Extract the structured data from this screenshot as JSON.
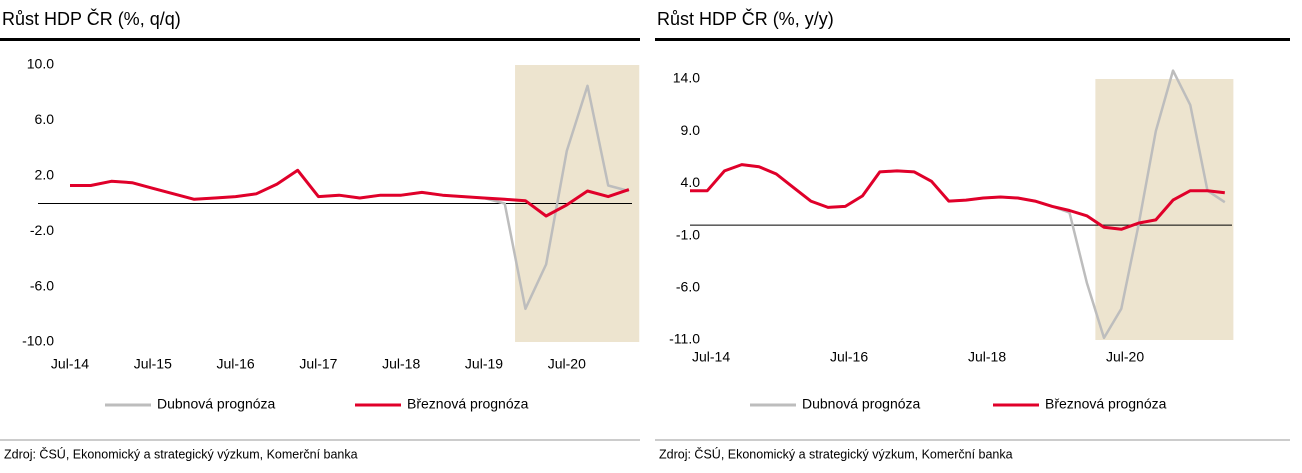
{
  "chart_data": [
    {
      "type": "line",
      "title": "Růst HDP ČR (%, q/q)",
      "categories": [
        "Jul-14",
        null,
        null,
        null,
        "Jul-15",
        null,
        null,
        null,
        "Jul-16",
        null,
        null,
        null,
        "Jul-17",
        null,
        null,
        null,
        "Jul-18",
        null,
        null,
        null,
        "Jul-19",
        null,
        null,
        null,
        "Jul-20",
        null,
        null,
        null
      ],
      "series": [
        {
          "name": "Dubnová prognóza",
          "color": "#bdbdbd",
          "values": [
            1.3,
            1.3,
            1.6,
            1.5,
            1.1,
            0.7,
            0.3,
            0.4,
            0.5,
            0.7,
            1.4,
            2.4,
            0.5,
            0.6,
            0.4,
            0.6,
            0.6,
            0.8,
            0.6,
            0.5,
            0.4,
            0.0,
            -7.6,
            -4.4,
            3.8,
            8.5,
            1.3,
            0.9
          ]
        },
        {
          "name": "Březnová prognóza",
          "color": "#e0002a",
          "values": [
            1.3,
            1.3,
            1.6,
            1.5,
            1.1,
            0.7,
            0.3,
            0.4,
            0.5,
            0.7,
            1.4,
            2.4,
            0.5,
            0.6,
            0.4,
            0.6,
            0.6,
            0.8,
            0.6,
            0.5,
            0.4,
            0.3,
            0.2,
            -0.9,
            -0.1,
            0.9,
            0.5,
            1.0
          ]
        }
      ],
      "ylim": [
        -10,
        10
      ],
      "yticks": [
        {
          "value": -10,
          "label": "-10.0"
        },
        {
          "value": -6,
          "label": "-6.0"
        },
        {
          "value": -2,
          "label": "-2.0"
        },
        {
          "value": 2,
          "label": "2.0"
        },
        {
          "value": 6,
          "label": "6.0"
        },
        {
          "value": 10,
          "label": "10.0"
        }
      ],
      "shade": {
        "from": 22,
        "to": 27,
        "color": "#ede4cf"
      },
      "source": "Zdroj: ČSÚ, Ekonomický a strategický výzkum, Komerční banka"
    },
    {
      "type": "line",
      "title": "Růst HDP ČR (%, y/y)",
      "categories": [
        "Jul-14",
        null,
        null,
        null,
        null,
        null,
        null,
        null,
        "Jul-16",
        null,
        null,
        null,
        null,
        null,
        null,
        null,
        "Jul-18",
        null,
        null,
        null,
        null,
        null,
        null,
        null,
        "Jul-20",
        null,
        null,
        null,
        null,
        null,
        null,
        null
      ],
      "series": [
        {
          "name": "Dubnová prognóza",
          "color": "#bdbdbd",
          "values": [
            3.3,
            3.3,
            5.2,
            5.8,
            5.6,
            4.9,
            3.6,
            2.3,
            1.7,
            1.8,
            2.8,
            5.1,
            5.2,
            5.1,
            4.2,
            2.3,
            2.4,
            2.6,
            2.7,
            2.6,
            2.3,
            1.8,
            1.2,
            -5.5,
            -10.8,
            -8.0,
            0.0,
            9.0,
            14.8,
            11.5,
            3.3,
            2.2
          ]
        },
        {
          "name": "Březnová prognóza",
          "color": "#e0002a",
          "values": [
            3.3,
            3.3,
            5.2,
            5.8,
            5.6,
            4.9,
            3.6,
            2.3,
            1.7,
            1.8,
            2.8,
            5.1,
            5.2,
            5.1,
            4.2,
            2.3,
            2.4,
            2.6,
            2.7,
            2.6,
            2.3,
            1.8,
            1.4,
            0.9,
            -0.2,
            -0.4,
            0.2,
            0.5,
            2.4,
            3.3,
            3.3,
            3.1
          ]
        }
      ],
      "ylim": [
        -11,
        14
      ],
      "yticks": [
        {
          "value": -11,
          "label": "-11.0"
        },
        {
          "value": -6,
          "label": "-6.0"
        },
        {
          "value": -1,
          "label": "-1.0"
        },
        {
          "value": 4,
          "label": "4.0"
        },
        {
          "value": 9,
          "label": "9.0"
        },
        {
          "value": 14,
          "label": "14.0"
        }
      ],
      "shade": {
        "from": 24,
        "to": 31,
        "color": "#ede4cf"
      },
      "source": "Zdroj: ČSÚ, Ekonomický a strategický výzkum, Komerční banka"
    }
  ]
}
